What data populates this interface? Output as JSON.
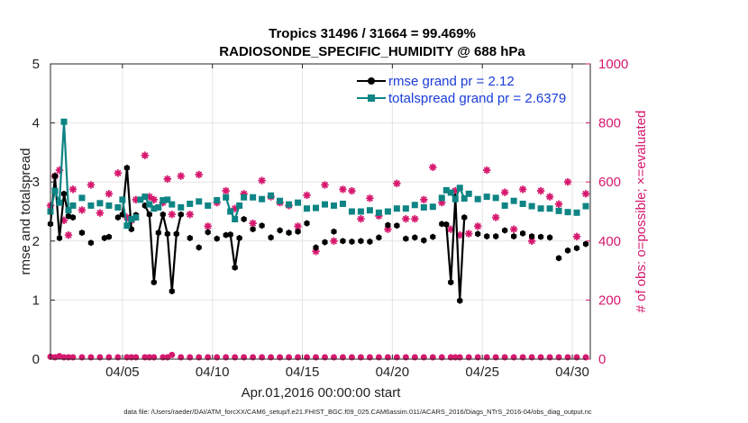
{
  "figure": {
    "title_line1": "Tropics 31496 / 31664 = 99.469%",
    "title_line2": "RADIOSONDE_SPECIFIC_HUMIDITY @ 688 hPa",
    "xlabel": "Apr.01,2016 00:00:00 start",
    "ylabel_left": "rmse and totalspread",
    "ylabel_right": "# of obs: o=possible; ×=evaluated",
    "footer": "data file: /Users/raeder/DAI/ATM_forcXX/CAM6_setup/f.e21.FHIST_BGC.f09_025.CAM6assim.011/ACARS_2016/Diags_NTrS_2016-04/obs_diag_output.nc"
  },
  "colors": {
    "rmse": "#000000",
    "totalspread": "#0e8484",
    "nobs": "#d6186e",
    "legend_text": "#1a3cd9"
  },
  "chart_data": {
    "type": "line",
    "title": "Tropics 31496 / 31664 = 99.469% RADIOSONDE_SPECIFIC_HUMIDITY @ 688 hPa",
    "xlim": [
      1,
      31
    ],
    "x_ticks": [
      5,
      10,
      15,
      20,
      25,
      30
    ],
    "x_tick_labels": [
      "04/05",
      "04/10",
      "04/15",
      "04/20",
      "04/25",
      "04/30"
    ],
    "ylim_left": [
      0,
      5
    ],
    "y_ticks_left": [
      0,
      1,
      2,
      3,
      4,
      5
    ],
    "ylim_right": [
      0,
      1000
    ],
    "y_ticks_right": [
      0,
      200,
      400,
      600,
      800,
      1000
    ],
    "legend": [
      "rmse grand pr = 2.12",
      "totalspread grand pr = 2.6379"
    ],
    "legend_position": "top-right",
    "series": [
      {
        "name": "rmse grand pr = 2.12",
        "axis": "left",
        "style": "line+markers",
        "segments": [
          {
            "x": [
              1.0,
              1.25,
              1.5,
              1.75,
              2.0,
              2.25
            ],
            "values": [
              2.29,
              3.1,
              2.05,
              2.8,
              2.42,
              2.4
            ]
          },
          {
            "x": [
              4.75,
              5.0,
              5.25,
              5.5
            ],
            "values": [
              2.4,
              2.45,
              3.24,
              2.2
            ]
          },
          {
            "x": [
              6.25,
              6.5,
              6.75,
              7.0,
              7.25,
              7.5,
              7.75,
              8.0,
              8.25
            ],
            "values": [
              2.6,
              2.45,
              1.3,
              2.14,
              2.45,
              2.12,
              1.15,
              2.12,
              2.45
            ]
          },
          {
            "x": [
              10.75,
              11.0,
              11.25,
              11.5
            ],
            "values": [
              2.1,
              2.11,
              1.55,
              2.05
            ]
          },
          {
            "x": [
              23.0,
              23.25,
              23.5,
              23.75,
              24.0
            ],
            "values": [
              2.28,
              1.3,
              2.75,
              0.99,
              2.4
            ]
          }
        ],
        "isolated": {
          "x": [
            2.75,
            3.25,
            4.25,
            4.0,
            5.75,
            8.75,
            9.25,
            9.75,
            10.25,
            11.75,
            12.25,
            12.75,
            13.25,
            13.75,
            14.25,
            14.75,
            15.25,
            15.75,
            16.25,
            16.75,
            17.25,
            17.75,
            18.25,
            18.75,
            19.25,
            19.75,
            20.25,
            20.75,
            21.25,
            21.75,
            22.25,
            22.75,
            24.75,
            25.25,
            25.75,
            26.25,
            26.75,
            27.25,
            27.75,
            28.25,
            28.75,
            29.25,
            29.75,
            30.25,
            30.75
          ],
          "values": [
            2.14,
            1.97,
            2.07,
            2.05,
            2.44,
            2.05,
            1.89,
            2.15,
            2.04,
            2.37,
            2.2,
            2.26,
            2.06,
            2.18,
            2.14,
            2.16,
            2.3,
            1.89,
            1.98,
            2.16,
            2.0,
            1.99,
            2.0,
            1.99,
            2.06,
            2.27,
            2.26,
            2.04,
            2.06,
            2.01,
            2.07,
            2.29,
            2.12,
            2.08,
            2.08,
            2.18,
            2.08,
            2.13,
            2.08,
            2.07,
            2.06,
            1.71,
            1.84,
            1.88,
            1.95
          ]
        }
      },
      {
        "name": "totalspread grand pr = 2.6379",
        "axis": "left",
        "style": "line+markers",
        "segments": [
          {
            "x": [
              1.0,
              1.25,
              1.5,
              1.75,
              2.0,
              2.25
            ],
            "values": [
              2.5,
              2.85,
              2.65,
              4.02,
              2.52,
              2.6
            ]
          },
          {
            "x": [
              5.0,
              5.25,
              5.5,
              5.75
            ],
            "values": [
              2.7,
              2.26,
              2.37,
              2.4
            ]
          },
          {
            "x": [
              6.25,
              6.5,
              6.75,
              7.0,
              7.25,
              7.5
            ],
            "values": [
              2.75,
              2.62,
              2.55,
              2.57,
              2.69,
              2.7
            ]
          },
          {
            "x": [
              10.75,
              11.0,
              11.25,
              11.5
            ],
            "values": [
              2.74,
              2.5,
              2.37,
              2.6
            ]
          },
          {
            "x": [
              23.0,
              23.25,
              23.5,
              23.75,
              24.0
            ],
            "values": [
              2.86,
              2.82,
              2.71,
              2.9,
              2.72
            ]
          }
        ],
        "isolated": {
          "x": [
            2.75,
            3.25,
            3.75,
            4.25,
            4.75,
            6.0,
            7.75,
            8.25,
            8.75,
            9.25,
            9.75,
            10.25,
            11.75,
            12.25,
            12.75,
            13.25,
            13.75,
            14.25,
            14.75,
            15.25,
            15.75,
            16.25,
            16.75,
            17.25,
            17.75,
            18.25,
            18.75,
            19.25,
            19.75,
            20.25,
            20.75,
            21.25,
            21.75,
            22.25,
            22.75,
            24.25,
            24.75,
            25.25,
            25.75,
            26.25,
            26.75,
            27.25,
            27.75,
            28.25,
            28.75,
            29.25,
            29.75,
            30.25,
            30.75
          ],
          "values": [
            2.73,
            2.6,
            2.64,
            2.6,
            2.57,
            2.7,
            2.62,
            2.57,
            2.63,
            2.67,
            2.6,
            2.69,
            2.74,
            2.74,
            2.71,
            2.77,
            2.68,
            2.62,
            2.65,
            2.55,
            2.56,
            2.62,
            2.6,
            2.63,
            2.5,
            2.5,
            2.52,
            2.48,
            2.5,
            2.55,
            2.55,
            2.61,
            2.57,
            2.58,
            2.73,
            2.8,
            2.71,
            2.75,
            2.73,
            2.6,
            2.68,
            2.63,
            2.59,
            2.55,
            2.55,
            2.51,
            2.49,
            2.48,
            2.59
          ]
        }
      },
      {
        "name": "# obs possible",
        "axis": "right",
        "style": "markers-circle",
        "x": [
          1.0,
          1.25,
          1.5,
          1.75,
          2.0,
          2.25,
          2.75,
          3.25,
          3.75,
          4.25,
          4.75,
          5.25,
          5.5,
          5.75,
          6.25,
          6.5,
          6.75,
          7.25,
          7.5,
          7.75,
          8.25,
          8.75,
          9.25,
          9.75,
          10.25,
          10.75,
          11.25,
          11.75,
          12.25,
          12.75,
          13.25,
          13.75,
          14.25,
          14.75,
          15.25,
          15.75,
          16.25,
          16.75,
          17.25,
          17.75,
          18.25,
          18.75,
          19.25,
          19.75,
          20.25,
          20.75,
          21.25,
          21.75,
          22.25,
          22.75,
          23.25,
          23.5,
          23.75,
          24.25,
          24.75,
          25.25,
          25.75,
          26.25,
          26.75,
          27.25,
          27.75,
          28.25,
          28.75,
          29.25,
          29.75,
          30.25,
          30.75
        ],
        "values": [
          8,
          6,
          10,
          6,
          4,
          4,
          4,
          2,
          4,
          2,
          4,
          4,
          2,
          4,
          2,
          4,
          4,
          4,
          4,
          14,
          4,
          4,
          4,
          2,
          4,
          4,
          4,
          4,
          2,
          2,
          4,
          4,
          4,
          4,
          2,
          2,
          4,
          2,
          2,
          4,
          4,
          2,
          4,
          4,
          2,
          2,
          2,
          4,
          4,
          2,
          4,
          4,
          2,
          4,
          4,
          2,
          2,
          4,
          4,
          4,
          2,
          4,
          4,
          4,
          4,
          2,
          2
        ]
      },
      {
        "name": "# obs evaluated",
        "axis": "right",
        "style": "markers-cross",
        "x": [
          1.0,
          1.25,
          1.5,
          1.75,
          2.0,
          2.25,
          2.75,
          3.25,
          3.75,
          4.25,
          4.75,
          5.25,
          5.5,
          5.75,
          6.25,
          6.5,
          6.75,
          7.25,
          7.5,
          7.75,
          8.25,
          8.75,
          9.25,
          9.75,
          10.25,
          10.75,
          11.25,
          11.75,
          12.25,
          12.75,
          13.25,
          13.75,
          14.25,
          14.75,
          15.25,
          15.75,
          16.25,
          16.75,
          17.25,
          17.75,
          18.25,
          18.75,
          19.25,
          19.75,
          20.25,
          20.75,
          21.25,
          21.75,
          22.25,
          22.75,
          23.25,
          23.5,
          23.75,
          24.25,
          24.75,
          25.25,
          25.75,
          26.25,
          26.75,
          27.25,
          27.75,
          28.25,
          28.75,
          29.25,
          29.75,
          30.25,
          30.75
        ],
        "values": [
          520,
          620,
          640,
          470,
          420,
          575,
          505,
          590,
          495,
          560,
          630,
          480,
          470,
          540,
          690,
          550,
          540,
          530,
          610,
          490,
          620,
          490,
          625,
          450,
          530,
          570,
          510,
          560,
          460,
          605,
          550,
          530,
          520,
          450,
          555,
          365,
          590,
          400,
          575,
          570,
          475,
          545,
          485,
          440,
          595,
          475,
          475,
          540,
          650,
          530,
          440,
          570,
          420,
          425,
          450,
          640,
          480,
          565,
          440,
          575,
          400,
          570,
          550,
          525,
          600,
          415,
          560
        ]
      }
    ]
  }
}
